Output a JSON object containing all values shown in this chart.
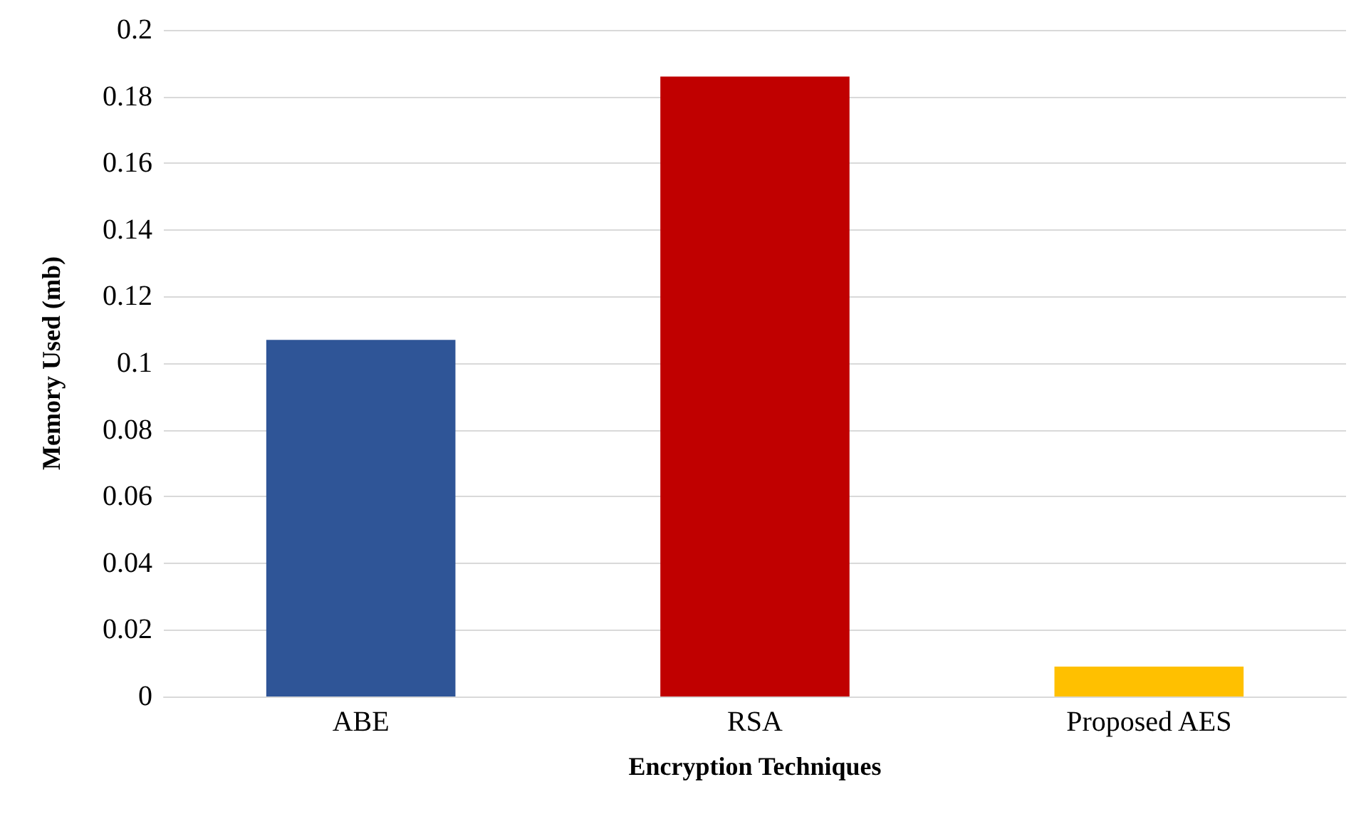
{
  "chart_data": {
    "type": "bar",
    "xlabel": "Encryption Techniques",
    "ylabel": "Memory Used (mb)",
    "categories": [
      "ABE",
      "RSA",
      "Proposed AES"
    ],
    "values": [
      0.107,
      0.186,
      0.009
    ],
    "colors": [
      "#2f5597",
      "#c00000",
      "#ffc000"
    ],
    "ylim": [
      0,
      0.2
    ],
    "yticks": [
      0,
      0.02,
      0.04,
      0.06,
      0.08,
      0.1,
      0.12,
      0.14,
      0.16,
      0.18,
      0.2
    ],
    "grid": "y"
  }
}
